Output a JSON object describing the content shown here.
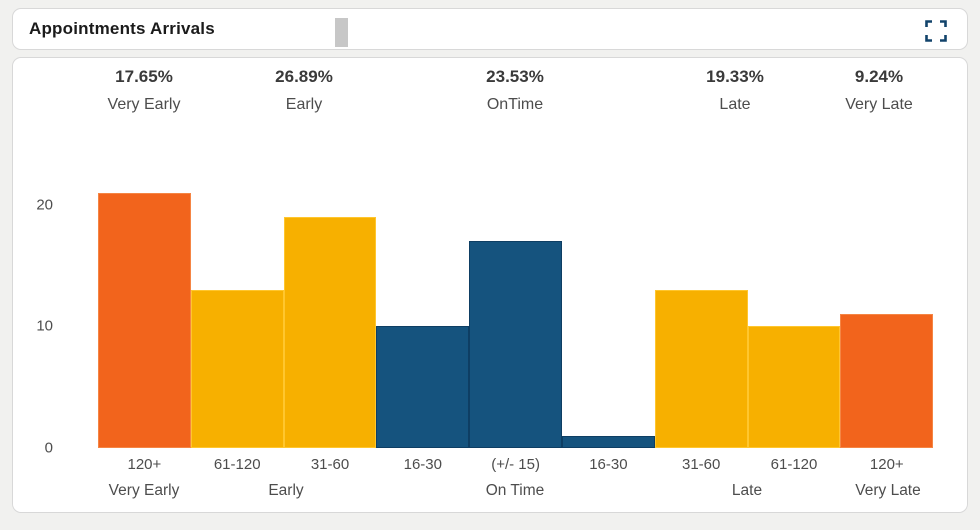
{
  "header": {
    "title": "Appointments Arrivals"
  },
  "icons": {
    "fullscreen": "focus-mode-corner-brackets"
  },
  "colors": {
    "orange": "#F2641C",
    "amber": "#F7B000",
    "blue": "#15537E",
    "orange_border": "#F58544",
    "amber_border": "#FFC62E",
    "blue_border": "#0E3E63",
    "icon_blue": "#12436B",
    "scroll_thumb": "#C7C7C7"
  },
  "chart_data": {
    "type": "bar",
    "title": "Appointments Arrivals",
    "xlabel": "",
    "ylabel": "",
    "ylim": [
      0,
      20
    ],
    "y_ticks": [
      0,
      10,
      20
    ],
    "grid": false,
    "legend": "none",
    "summary": [
      {
        "pct": "17.65%",
        "label": "Very Early"
      },
      {
        "pct": "26.89%",
        "label": "Early"
      },
      {
        "pct": "23.53%",
        "label": "OnTime"
      },
      {
        "pct": "19.33%",
        "label": "Late"
      },
      {
        "pct": "9.24%",
        "label": "Very Late"
      }
    ],
    "bars": [
      {
        "bin": "120+",
        "group": "Very Early",
        "value": 21,
        "color": "orange"
      },
      {
        "bin": "61-120",
        "group": "Early",
        "value": 13,
        "color": "amber"
      },
      {
        "bin": "31-60",
        "group": "Early",
        "value": 19,
        "color": "amber"
      },
      {
        "bin": "16-30",
        "group": "On Time",
        "value": 10,
        "color": "blue"
      },
      {
        "bin": "(+/- 15)",
        "group": "On Time",
        "value": 17,
        "color": "blue"
      },
      {
        "bin": "16-30",
        "group": "On Time",
        "value": 1,
        "color": "blue"
      },
      {
        "bin": "31-60",
        "group": "Late",
        "value": 13,
        "color": "amber"
      },
      {
        "bin": "61-120",
        "group": "Late",
        "value": 10,
        "color": "amber"
      },
      {
        "bin": "120+",
        "group": "Very Late",
        "value": 11,
        "color": "orange"
      }
    ],
    "group_axis_labels": [
      "Very Early",
      "Early",
      "On Time",
      "Late",
      "Very Late"
    ]
  }
}
